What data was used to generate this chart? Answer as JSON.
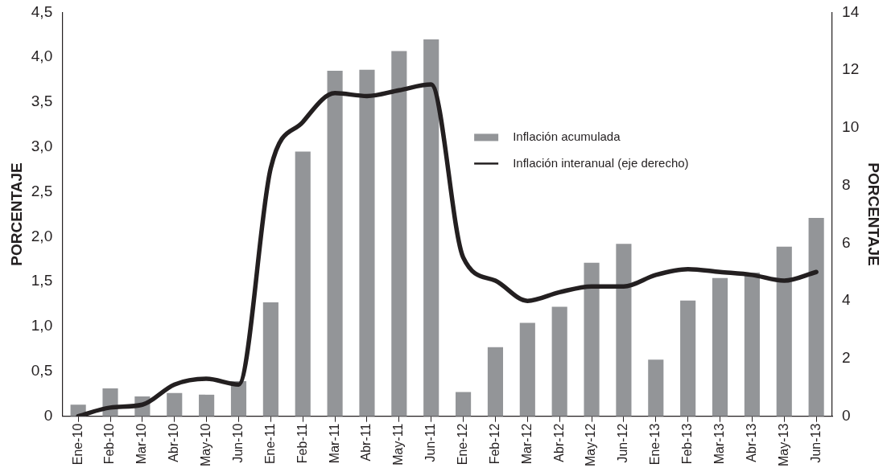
{
  "chart_data": {
    "type": "bar",
    "categories": [
      "Ene-10",
      "Feb-10",
      "Mar-10",
      "Abr-10",
      "May-10",
      "Jun-10",
      "Ene-11",
      "Feb-11",
      "Mar-11",
      "Abr-11",
      "May-11",
      "Jun-11",
      "Ene-12",
      "Feb-12",
      "Mar-12",
      "Abr-12",
      "May-12",
      "Jun-12",
      "Ene-13",
      "Feb-13",
      "Mar-13",
      "Abr-13",
      "May-13",
      "Jun-13"
    ],
    "ylabel": "PORCENTAJE",
    "y2label": "PORCENTAJE",
    "ylim": [
      0,
      4.5
    ],
    "yticks": [
      0,
      {
        "value": 0.5,
        "label": "0,5"
      },
      {
        "value": 1,
        "label": "1,0"
      },
      {
        "value": 1.5,
        "label": "1,5"
      },
      {
        "value": 2,
        "label": "2,0"
      },
      {
        "value": 2.5,
        "label": "2,5"
      },
      {
        "value": 3,
        "label": "3,0"
      },
      {
        "value": 3.5,
        "label": "3,5"
      },
      {
        "value": 4,
        "label": "4,0"
      },
      {
        "value": 4.5,
        "label": "4,5"
      }
    ],
    "y2lim": [
      0,
      14
    ],
    "y2ticks": [
      0,
      2,
      4,
      6,
      8,
      10,
      12,
      14
    ],
    "series": [
      {
        "name": "Inflación acumulada",
        "color": "#939598",
        "values": [
          0.13,
          0.31,
          0.22,
          0.26,
          0.24,
          0.39,
          1.27,
          2.95,
          3.85,
          3.86,
          4.07,
          4.2,
          0.27,
          0.77,
          1.04,
          1.22,
          1.71,
          1.92,
          0.63,
          1.29,
          1.54,
          1.6,
          1.89,
          2.21
        ]
      },
      {
        "name": "Inflación interanual (eje derecho)",
        "type": "line",
        "axis": "y2",
        "color": "#231f20",
        "values": [
          0,
          0.3,
          0.4,
          1.1,
          1.3,
          1.1,
          8.6,
          10.2,
          11.2,
          11.1,
          11.3,
          11.5,
          5.5,
          4.7,
          4.0,
          4.3,
          4.5,
          4.5,
          4.9,
          5.1,
          5.0,
          4.9,
          4.7,
          5.0
        ]
      }
    ],
    "legend": "top right",
    "grid": false,
    "marker": "none",
    "line_style": "solid"
  }
}
